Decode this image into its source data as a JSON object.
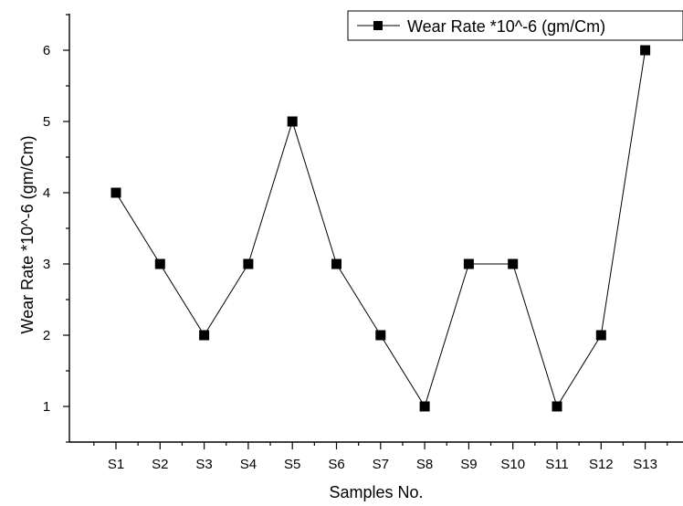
{
  "chart_data": {
    "type": "line",
    "categories": [
      "S1",
      "S2",
      "S3",
      "S4",
      "S5",
      "S6",
      "S7",
      "S8",
      "S9",
      "S10",
      "S11",
      "S12",
      "S13"
    ],
    "series": [
      {
        "name": "Wear Rate *10^-6 (gm/Cm)",
        "values": [
          4,
          3,
          2,
          3,
          5,
          3,
          2,
          1,
          3,
          3,
          1,
          2,
          6
        ],
        "marker": "square",
        "color": "#000000"
      }
    ],
    "xlabel": "Samples No.",
    "ylabel": "Wear Rate *10^-6 (gm/Cm)",
    "yticks": [
      "1",
      "2",
      "3",
      "4",
      "5",
      "6"
    ],
    "ylim": [
      0.5,
      6.5
    ],
    "grid": false,
    "legend": "top-right"
  }
}
